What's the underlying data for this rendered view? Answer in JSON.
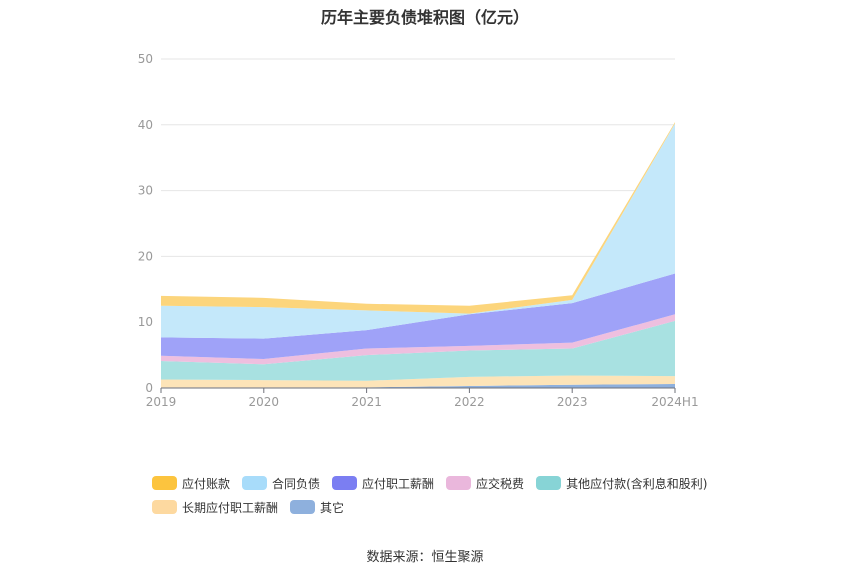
{
  "chart_data": {
    "type": "area",
    "stacked": true,
    "title": "历年主要负债堆积图（亿元）",
    "xlabel": "",
    "ylabel": "",
    "categories": [
      "2019",
      "2020",
      "2021",
      "2022",
      "2023",
      "2024H1"
    ],
    "ylim": [
      0,
      50
    ],
    "yticks": [
      0,
      10,
      20,
      30,
      40,
      50
    ],
    "grid": true,
    "legend_position": "bottom",
    "series": [
      {
        "name": "其它",
        "color": "#8eb0dd",
        "values": [
          0.1,
          0.1,
          0.1,
          0.3,
          0.5,
          0.6
        ]
      },
      {
        "name": "长期应付职工薪酬",
        "color": "#fde4b8",
        "values": [
          1.2,
          1.1,
          1.0,
          1.4,
          1.4,
          1.2
        ]
      },
      {
        "name": "其他应付款(含利息和股利)",
        "color": "#a8e1e1",
        "values": [
          2.8,
          2.4,
          3.9,
          4.0,
          4.1,
          8.4
        ]
      },
      {
        "name": "应交税费",
        "color": "#eebfdf",
        "values": [
          0.8,
          0.8,
          1.0,
          0.7,
          0.9,
          1.0
        ]
      },
      {
        "name": "应付职工薪酬",
        "color": "#9fa2f8",
        "values": [
          2.8,
          3.1,
          2.8,
          4.8,
          6.0,
          6.2
        ]
      },
      {
        "name": "合同负债",
        "color": "#c4e8fa",
        "values": [
          4.8,
          4.8,
          3.0,
          0.1,
          0.5,
          22.8
        ]
      },
      {
        "name": "应付账款",
        "color": "#fcd57c",
        "values": [
          1.5,
          1.4,
          1.0,
          1.2,
          0.7,
          0.2
        ]
      }
    ]
  },
  "legend": [
    {
      "label": "应付账款",
      "color": "#fcc43e"
    },
    {
      "label": "合同负债",
      "color": "#a8dcfa"
    },
    {
      "label": "应付职工薪酬",
      "color": "#7b7ef2"
    },
    {
      "label": "应交税费",
      "color": "#eab7dc"
    },
    {
      "label": "其他应付款(含利息和股利)",
      "color": "#87d4d6"
    },
    {
      "label": "长期应付职工薪酬",
      "color": "#fdd9a0"
    },
    {
      "label": "其它",
      "color": "#8eb0dd"
    }
  ],
  "source": "数据来源：恒生聚源"
}
